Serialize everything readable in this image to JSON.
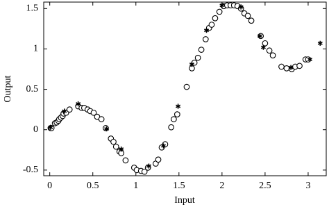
{
  "chart_data": {
    "type": "scatter",
    "x_label": "Input",
    "y_label": "Output",
    "xlim": [
      -0.07,
      3.21
    ],
    "ylim": [
      -0.57,
      1.58
    ],
    "xticks": [
      0,
      0.5,
      1,
      1.5,
      2,
      2.5,
      3
    ],
    "yticks": [
      -0.5,
      0,
      0.5,
      1,
      1.5
    ],
    "series": [
      {
        "marker": "circle",
        "color": "#000000",
        "x": [
          0.01,
          0.02,
          0.06,
          0.08,
          0.1,
          0.11,
          0.13,
          0.15,
          0.16,
          0.19,
          0.23,
          0.33,
          0.37,
          0.4,
          0.44,
          0.47,
          0.51,
          0.55,
          0.6,
          0.65,
          0.71,
          0.74,
          0.77,
          0.81,
          0.83,
          0.88,
          0.98,
          1.01,
          1.06,
          1.1,
          1.14,
          1.23,
          1.26,
          1.3,
          1.34,
          1.41,
          1.44,
          1.48,
          1.59,
          1.65,
          1.68,
          1.72,
          1.76,
          1.81,
          1.85,
          1.88,
          1.92,
          1.97,
          2.02,
          2.06,
          2.1,
          2.14,
          2.18,
          2.22,
          2.26,
          2.3,
          2.34,
          2.45,
          2.5,
          2.55,
          2.59,
          2.69,
          2.75,
          2.81,
          2.85,
          2.9,
          2.97,
          3.0
        ],
        "values": [
          0.02,
          0.02,
          0.08,
          0.09,
          0.11,
          0.13,
          0.15,
          0.17,
          0.2,
          0.21,
          0.25,
          0.29,
          0.27,
          0.27,
          0.25,
          0.23,
          0.21,
          0.16,
          0.13,
          0.02,
          -0.11,
          -0.15,
          -0.21,
          -0.27,
          -0.29,
          -0.38,
          -0.47,
          -0.5,
          -0.51,
          -0.52,
          -0.47,
          -0.42,
          -0.37,
          -0.22,
          -0.18,
          0.03,
          0.13,
          0.19,
          0.53,
          0.76,
          0.83,
          0.89,
          0.99,
          1.12,
          1.26,
          1.3,
          1.38,
          1.46,
          1.53,
          1.54,
          1.54,
          1.54,
          1.53,
          1.5,
          1.44,
          1.41,
          1.35,
          1.16,
          1.07,
          0.98,
          0.92,
          0.78,
          0.76,
          0.75,
          0.78,
          0.79,
          0.87,
          0.87
        ]
      },
      {
        "marker": "asterisk",
        "color": "#000000",
        "x": [
          0.01,
          0.17,
          0.33,
          0.66,
          0.83,
          1.15,
          1.32,
          1.49,
          1.65,
          1.82,
          2.0,
          2.22,
          2.44,
          2.48,
          2.8,
          3.02,
          3.14
        ],
        "values": [
          0.03,
          0.23,
          0.32,
          0.01,
          -0.24,
          -0.45,
          -0.2,
          0.29,
          0.81,
          1.23,
          1.54,
          1.52,
          1.16,
          1.02,
          0.77,
          0.87,
          1.07
        ]
      }
    ]
  }
}
